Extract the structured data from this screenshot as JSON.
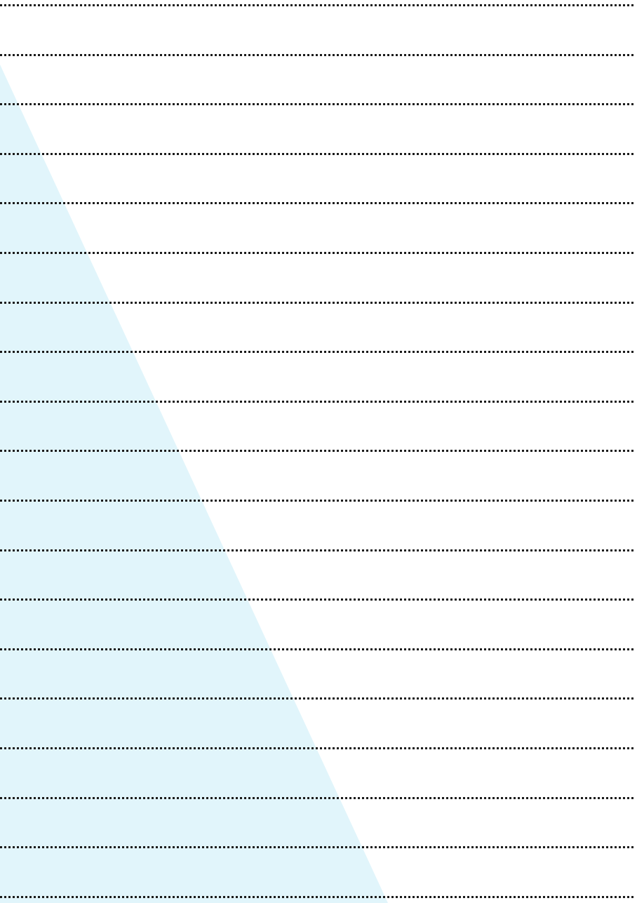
{
  "sheet": {
    "background_color": "#ffffff",
    "accent_color": "#e1f5fb",
    "line_color": "#1a1a1a",
    "line_style": "dotted",
    "line_count": 19,
    "decoration": "light-blue-diagonal-wedge"
  }
}
